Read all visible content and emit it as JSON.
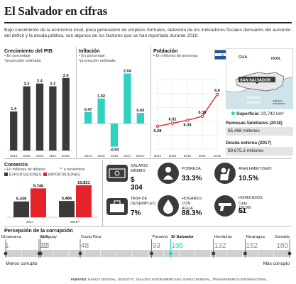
{
  "header": {
    "title": "El Salvador en cifras",
    "intro": "Bajo crecimiento de la economía local, poca generación de empleos formales, deterioro de los indicadores fiscales derivados del aumento del déficit y la deuda pública, son algunos de los factores que se han reportado durante 2018."
  },
  "pib": {
    "title": "Crecimiento del PIB",
    "sub1": "En porcentaje",
    "sub2": "*proyección estimada",
    "chart_data": {
      "type": "bar",
      "categories": [
        "2014",
        "2015",
        "2016",
        "2017",
        "2018*"
      ],
      "values": [
        1.4,
        2.3,
        2.4,
        2.3,
        2.6
      ],
      "value_labels": [
        "1.4",
        "2.3",
        "2.4",
        "2.3",
        "2.6"
      ],
      "color": "#3a3a3a",
      "ylim": [
        0,
        2.9
      ]
    }
  },
  "inflacion": {
    "title": "Inflación",
    "sub1": "En porcentaje",
    "sub2": "*proyección estimada",
    "chart_data": {
      "type": "bar",
      "categories": [
        "2014",
        "2015",
        "2016",
        "2017",
        "2018*"
      ],
      "values": [
        0.47,
        1.02,
        -0.94,
        2.04,
        0.43
      ],
      "value_labels": [
        "0.47",
        "1.02",
        "-0.94",
        "2.04",
        "0.43"
      ],
      "color": "#2fd1c0",
      "ylim": [
        -1.1,
        2.2
      ]
    }
  },
  "poblacion": {
    "title": "Población",
    "sub1": "En millones de personas",
    "chart_data": {
      "type": "line",
      "x": [
        "2014",
        "2015",
        "2016",
        "2017",
        "2018"
      ],
      "values": [
        6.28,
        6.31,
        6.34,
        6.38,
        6.6
      ],
      "value_labels": [
        "6.28",
        "6.31",
        "6.34",
        "6.38",
        "6.6"
      ],
      "color": "#e4232b",
      "ylim": [
        6.05,
        6.75
      ],
      "grid": true
    }
  },
  "map": {
    "country_label": "GUA.",
    "country_label2": "HON.",
    "capital_label": "SAN SALVADOR",
    "ocean_label1": "Océano",
    "ocean_label2": "Pacífico",
    "scale_label": "100 km",
    "land_color": "#ffffff",
    "sea_color": "#cfe3ea"
  },
  "superficie": {
    "label": "Superficie:",
    "value": "20,742 km²"
  },
  "remesas": {
    "label": "Remesas familiares (2018)",
    "value": "$5,468 millones"
  },
  "deuda": {
    "label": "Deuda externa (2017)",
    "value": "$9,675.3 millones"
  },
  "comercio": {
    "title": "Comercio",
    "sub1": "En millones de dólares",
    "note": "** a noviembre",
    "legend_export": "EXPORTACIONES",
    "legend_import": "IMPORTACIONES",
    "chart_data": {
      "type": "bar",
      "categories": [
        "2017",
        "2018**"
      ],
      "series": [
        {
          "name": "EXPORTACIONES",
          "values": [
            5339,
            5486
          ],
          "labels": [
            "5,339",
            "5,486"
          ],
          "color": "#3a3a3a"
        },
        {
          "name": "IMPORTACIONES",
          "values": [
            9746,
            10821
          ],
          "labels": [
            "9,746",
            "10,821"
          ],
          "color": "#e4232b"
        }
      ],
      "ylim": [
        0,
        11500
      ]
    }
  },
  "stats": {
    "salario": {
      "label1": "SALARIO",
      "label2": "MÍNIMO",
      "value": "$ 304",
      "icon": "money-bill-icon"
    },
    "pobreza": {
      "label": "POBREZA",
      "value": "33.3%",
      "icon": "person-icon"
    },
    "analfabetismo": {
      "label": "ANALFABETISMO",
      "value": "10.5%",
      "icon": "raised-hand-icon"
    },
    "desempleo": {
      "label1": "TASA DE",
      "label2": "DESEMPLEO",
      "value": "7%",
      "icon": "briefcase-icon"
    },
    "agua": {
      "label1": "HOGARES",
      "label2": "CON AGUA",
      "value": "88.3%",
      "icon": "water-drop-icon"
    },
    "homicidios": {
      "label": "HOMICIDIOS",
      "note": "Cada 100,000 hab.",
      "value": "51",
      "icon": "pistol-icon"
    }
  },
  "corrupcion": {
    "title": "Percepción de la corrupción",
    "less_label": "Menos corrupto",
    "more_label": "Más corrupto",
    "chart_data": {
      "type": "scatter",
      "countries": [
        "Dinamarca",
        "EUA",
        "Uruguay",
        "Costa Rica",
        "Panamá",
        "El Salvador",
        "Honduras",
        "Nicaragua",
        "Somalia"
      ],
      "ranks": [
        1,
        22,
        23,
        48,
        93,
        105,
        132,
        152,
        180
      ],
      "xlim": [
        1,
        180
      ],
      "highlight": "El Salvador",
      "highlight_color": "#2fd1c0"
    }
  },
  "footer": {
    "sources_label": "FUENTES:",
    "sources": "BANCO CENTRAL, DIGESTYC, DIÁLOGO INTERAMERICANO, BANCO MUNDIAL, TRANSPARENCIA INTERNACIONAL."
  }
}
